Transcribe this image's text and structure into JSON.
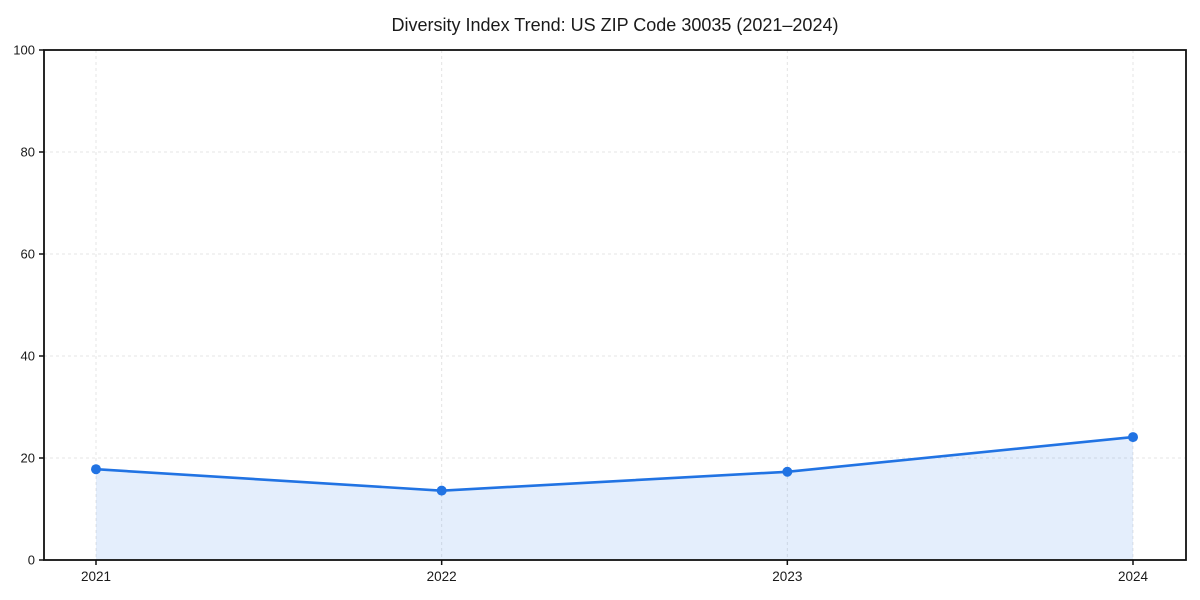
{
  "chart_data": {
    "type": "area",
    "title": "Diversity Index Trend: US ZIP Code 30035 (2021–2024)",
    "categories": [
      "2021",
      "2022",
      "2023",
      "2024"
    ],
    "series": [
      {
        "name": "Diversity Index",
        "values": [
          17.8,
          13.6,
          17.3,
          24.1
        ]
      }
    ],
    "xlabel": "",
    "ylabel": "",
    "ylim": [
      0,
      100
    ],
    "yticks": [
      0,
      20,
      40,
      60,
      80,
      100
    ],
    "grid": {
      "show": true,
      "style": "dashed",
      "color": "#e4e4e4"
    },
    "legend": "none",
    "colors": {
      "line": "#2173e3",
      "marker": "#2173e3",
      "fill": "#2173e3",
      "fill_opacity": 0.12,
      "axis": "#111111",
      "text": "#1a1a1a"
    }
  }
}
